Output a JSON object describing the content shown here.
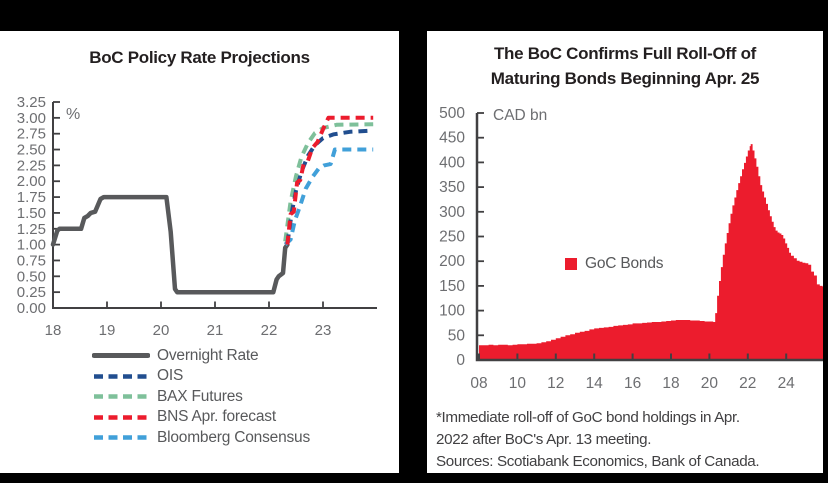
{
  "page": {
    "background_color": "#000000",
    "panel_color": "#ffffff",
    "axis_color": "#414042",
    "tick_label_color": "#6D6E71",
    "title_color": "#231F20",
    "legend_text_color": "#58595B"
  },
  "chart_data": [
    {
      "type": "line",
      "title": "BoC Policy Rate Projections",
      "unit_label": "%",
      "xlim": [
        2018,
        2024
      ],
      "ylim": [
        0,
        3.25
      ],
      "y_tick_step": 0.25,
      "y_tick_labels": [
        "0.00",
        "0.25",
        "0.50",
        "0.75",
        "1.00",
        "1.25",
        "1.50",
        "1.75",
        "2.00",
        "2.25",
        "2.50",
        "2.75",
        "3.00",
        "3.25"
      ],
      "x_ticks": [
        2018,
        2019,
        2020,
        2021,
        2022,
        2023
      ],
      "x_tick_labels": [
        "18",
        "19",
        "20",
        "21",
        "22",
        "23"
      ],
      "grid": false,
      "legend_position": "below",
      "series": [
        {
          "name": "Overnight Rate",
          "color": "#58595B",
          "style": "solid",
          "width": 4.5,
          "points": [
            [
              2018.0,
              1.0
            ],
            [
              2018.08,
              1.22
            ],
            [
              2018.12,
              1.25
            ],
            [
              2018.52,
              1.25
            ],
            [
              2018.58,
              1.42
            ],
            [
              2018.64,
              1.45
            ],
            [
              2018.7,
              1.5
            ],
            [
              2018.78,
              1.52
            ],
            [
              2018.88,
              1.72
            ],
            [
              2018.94,
              1.75
            ],
            [
              2020.1,
              1.75
            ],
            [
              2020.18,
              1.2
            ],
            [
              2020.26,
              0.3
            ],
            [
              2020.3,
              0.25
            ],
            [
              2022.08,
              0.25
            ],
            [
              2022.14,
              0.45
            ],
            [
              2022.18,
              0.5
            ],
            [
              2022.26,
              0.55
            ],
            [
              2022.3,
              0.95
            ],
            [
              2022.34,
              1.0
            ]
          ]
        },
        {
          "name": "OIS",
          "color": "#214E8F",
          "style": "dashed",
          "width": 4,
          "points": [
            [
              2022.34,
              1.02
            ],
            [
              2022.42,
              1.5
            ],
            [
              2022.5,
              1.85
            ],
            [
              2022.6,
              2.15
            ],
            [
              2022.72,
              2.4
            ],
            [
              2022.85,
              2.57
            ],
            [
              2023.0,
              2.68
            ],
            [
              2023.2,
              2.74
            ],
            [
              2023.5,
              2.78
            ],
            [
              2023.93,
              2.8
            ]
          ]
        },
        {
          "name": "BAX Futures",
          "color": "#7EC09A",
          "style": "dashed",
          "width": 4,
          "points": [
            [
              2022.3,
              1.05
            ],
            [
              2022.4,
              1.68
            ],
            [
              2022.5,
              2.08
            ],
            [
              2022.6,
              2.38
            ],
            [
              2022.72,
              2.6
            ],
            [
              2022.85,
              2.76
            ],
            [
              2023.0,
              2.84
            ],
            [
              2023.25,
              2.89
            ],
            [
              2023.93,
              2.9
            ]
          ]
        },
        {
          "name": "BNS Apr. forecast",
          "color": "#EC1C2D",
          "style": "dashed",
          "width": 4,
          "points": [
            [
              2022.34,
              1.0
            ],
            [
              2022.4,
              1.48
            ],
            [
              2022.46,
              1.52
            ],
            [
              2022.52,
              1.98
            ],
            [
              2022.58,
              2.02
            ],
            [
              2022.64,
              2.27
            ],
            [
              2022.72,
              2.32
            ],
            [
              2022.8,
              2.52
            ],
            [
              2022.9,
              2.62
            ],
            [
              2023.0,
              2.82
            ],
            [
              2023.1,
              3.0
            ],
            [
              2023.93,
              3.0
            ]
          ]
        },
        {
          "name": "Bloomberg Consensus",
          "color": "#41A0D9",
          "style": "dashed",
          "width": 4,
          "points": [
            [
              2022.3,
              1.0
            ],
            [
              2022.4,
              1.08
            ],
            [
              2022.48,
              1.38
            ],
            [
              2022.58,
              1.62
            ],
            [
              2022.68,
              1.88
            ],
            [
              2022.8,
              2.06
            ],
            [
              2022.92,
              2.2
            ],
            [
              2023.02,
              2.25
            ],
            [
              2023.14,
              2.27
            ],
            [
              2023.22,
              2.5
            ],
            [
              2023.93,
              2.5
            ]
          ]
        }
      ]
    },
    {
      "type": "area",
      "title_lines": [
        "The BoC Confirms Full Roll-Off of",
        "Maturing Bonds Beginning Apr. 25"
      ],
      "unit_label": "CAD bn",
      "xlim": [
        2008,
        2025.92
      ],
      "ylim": [
        0,
        500
      ],
      "y_tick_step": 50,
      "x_ticks": [
        2008,
        2010,
        2012,
        2014,
        2016,
        2018,
        2020,
        2022,
        2024
      ],
      "x_tick_labels": [
        "08",
        "10",
        "12",
        "14",
        "16",
        "18",
        "20",
        "22",
        "24"
      ],
      "grid": false,
      "legend_position": "inside",
      "legend_label": "GoC Bonds",
      "fill_color": "#EC1C2D",
      "points": [
        [
          2008.0,
          30
        ],
        [
          2008.25,
          30
        ],
        [
          2008.5,
          31
        ],
        [
          2008.75,
          30
        ],
        [
          2009.0,
          31
        ],
        [
          2009.25,
          31
        ],
        [
          2009.5,
          30
        ],
        [
          2009.75,
          31
        ],
        [
          2010.0,
          32
        ],
        [
          2010.25,
          32
        ],
        [
          2010.5,
          33
        ],
        [
          2010.75,
          33
        ],
        [
          2011.0,
          34
        ],
        [
          2011.25,
          36
        ],
        [
          2011.5,
          38
        ],
        [
          2011.75,
          41
        ],
        [
          2012.0,
          44
        ],
        [
          2012.25,
          47
        ],
        [
          2012.5,
          50
        ],
        [
          2012.75,
          52
        ],
        [
          2013.0,
          55
        ],
        [
          2013.25,
          57
        ],
        [
          2013.5,
          59
        ],
        [
          2013.75,
          62
        ],
        [
          2014.0,
          64
        ],
        [
          2014.25,
          65
        ],
        [
          2014.5,
          66
        ],
        [
          2014.75,
          67
        ],
        [
          2015.0,
          69
        ],
        [
          2015.25,
          70
        ],
        [
          2015.5,
          71
        ],
        [
          2015.75,
          72
        ],
        [
          2016.0,
          74
        ],
        [
          2016.25,
          74
        ],
        [
          2016.5,
          75
        ],
        [
          2016.75,
          76
        ],
        [
          2017.0,
          77
        ],
        [
          2017.25,
          77
        ],
        [
          2017.5,
          78
        ],
        [
          2017.75,
          79
        ],
        [
          2018.0,
          80
        ],
        [
          2018.25,
          81
        ],
        [
          2018.5,
          81
        ],
        [
          2018.75,
          81
        ],
        [
          2019.0,
          80
        ],
        [
          2019.25,
          80
        ],
        [
          2019.5,
          79
        ],
        [
          2019.75,
          78
        ],
        [
          2020.0,
          78
        ],
        [
          2020.2,
          77
        ],
        [
          2020.3,
          95
        ],
        [
          2020.4,
          130
        ],
        [
          2020.5,
          160
        ],
        [
          2020.6,
          188
        ],
        [
          2020.7,
          213
        ],
        [
          2020.8,
          236
        ],
        [
          2020.9,
          257
        ],
        [
          2021.0,
          277
        ],
        [
          2021.1,
          296
        ],
        [
          2021.2,
          313
        ],
        [
          2021.3,
          329
        ],
        [
          2021.4,
          344
        ],
        [
          2021.5,
          358
        ],
        [
          2021.6,
          372
        ],
        [
          2021.7,
          386
        ],
        [
          2021.8,
          399
        ],
        [
          2021.9,
          412
        ],
        [
          2022.0,
          424
        ],
        [
          2022.1,
          433
        ],
        [
          2022.15,
          437
        ],
        [
          2022.25,
          424
        ],
        [
          2022.35,
          408
        ],
        [
          2022.45,
          391
        ],
        [
          2022.55,
          372
        ],
        [
          2022.65,
          354
        ],
        [
          2022.75,
          341
        ],
        [
          2022.85,
          329
        ],
        [
          2022.95,
          316
        ],
        [
          2023.05,
          303
        ],
        [
          2023.15,
          291
        ],
        [
          2023.25,
          280
        ],
        [
          2023.35,
          269
        ],
        [
          2023.45,
          262
        ],
        [
          2023.55,
          258
        ],
        [
          2023.65,
          256
        ],
        [
          2023.75,
          253
        ],
        [
          2023.85,
          246
        ],
        [
          2023.95,
          236
        ],
        [
          2024.05,
          227
        ],
        [
          2024.15,
          217
        ],
        [
          2024.25,
          211
        ],
        [
          2024.4,
          206
        ],
        [
          2024.55,
          201
        ],
        [
          2024.7,
          199
        ],
        [
          2024.85,
          197
        ],
        [
          2025.0,
          196
        ],
        [
          2025.15,
          193
        ],
        [
          2025.3,
          179
        ],
        [
          2025.45,
          171
        ],
        [
          2025.6,
          153
        ],
        [
          2025.75,
          150
        ],
        [
          2025.9,
          148
        ]
      ],
      "footnote": [
        "*Immediate roll-off of GoC bond holdings in Apr.",
        "2022 after BoC's Apr. 13 meeting.",
        "Sources: Scotiabank Economics, Bank of Canada."
      ]
    }
  ]
}
